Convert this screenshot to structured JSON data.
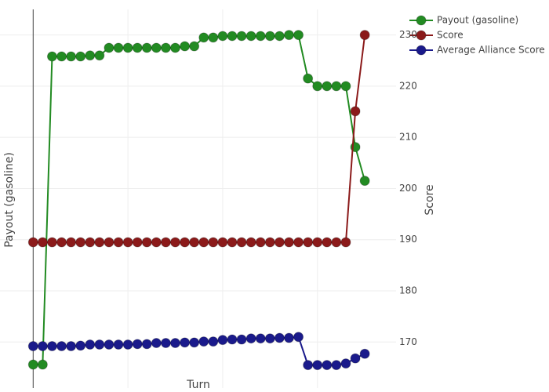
{
  "chart_data": {
    "type": "line",
    "x_label": "Turn",
    "y_label": "Payout (gasoline)",
    "y2_label": "Score",
    "x": [
      0,
      1,
      2,
      3,
      4,
      5,
      6,
      7,
      8,
      9,
      10,
      11,
      12,
      13,
      14,
      15,
      16,
      17,
      18,
      19,
      20,
      21,
      22,
      23,
      24,
      25,
      26,
      27,
      28,
      29,
      30,
      31,
      32,
      33,
      34,
      35
    ],
    "xlim": [
      -3.5,
      38.3
    ],
    "xticks": [
      0,
      10,
      20,
      30
    ],
    "ylim": [
      161,
      235
    ],
    "y2lim": [
      161,
      235
    ],
    "y2ticks": [
      170,
      180,
      190,
      200,
      210,
      220,
      230
    ],
    "grid": true,
    "legend": "top-right",
    "series": [
      {
        "name": "Payout (gasoline)",
        "color": "#228b22",
        "axis": "y",
        "values": [
          165.6,
          165.6,
          225.8,
          225.8,
          225.8,
          225.8,
          226,
          226,
          227.5,
          227.5,
          227.5,
          227.5,
          227.5,
          227.5,
          227.5,
          227.5,
          227.8,
          227.8,
          229.5,
          229.5,
          229.8,
          229.8,
          229.8,
          229.8,
          229.8,
          229.8,
          229.8,
          230,
          230,
          221.5,
          220,
          220,
          220,
          220,
          208.1,
          201.5
        ]
      },
      {
        "name": "Score",
        "color": "#8b1a1a",
        "axis": "y2",
        "values": [
          189.5,
          189.5,
          189.5,
          189.5,
          189.5,
          189.5,
          189.5,
          189.5,
          189.5,
          189.5,
          189.5,
          189.5,
          189.5,
          189.5,
          189.5,
          189.5,
          189.5,
          189.5,
          189.5,
          189.5,
          189.5,
          189.5,
          189.5,
          189.5,
          189.5,
          189.5,
          189.5,
          189.5,
          189.5,
          189.5,
          189.5,
          189.5,
          189.5,
          189.5,
          215.1,
          230
        ]
      },
      {
        "name": "Average Alliance Score",
        "color": "#1a1a8b",
        "axis": "y2",
        "values": [
          169.2,
          169.2,
          169.2,
          169.2,
          169.2,
          169.3,
          169.5,
          169.5,
          169.5,
          169.5,
          169.5,
          169.6,
          169.6,
          169.8,
          169.8,
          169.8,
          169.9,
          169.9,
          170.1,
          170.1,
          170.4,
          170.5,
          170.5,
          170.7,
          170.7,
          170.7,
          170.8,
          170.8,
          171,
          165.5,
          165.5,
          165.5,
          165.5,
          165.8,
          166.8,
          167.7
        ]
      }
    ]
  }
}
